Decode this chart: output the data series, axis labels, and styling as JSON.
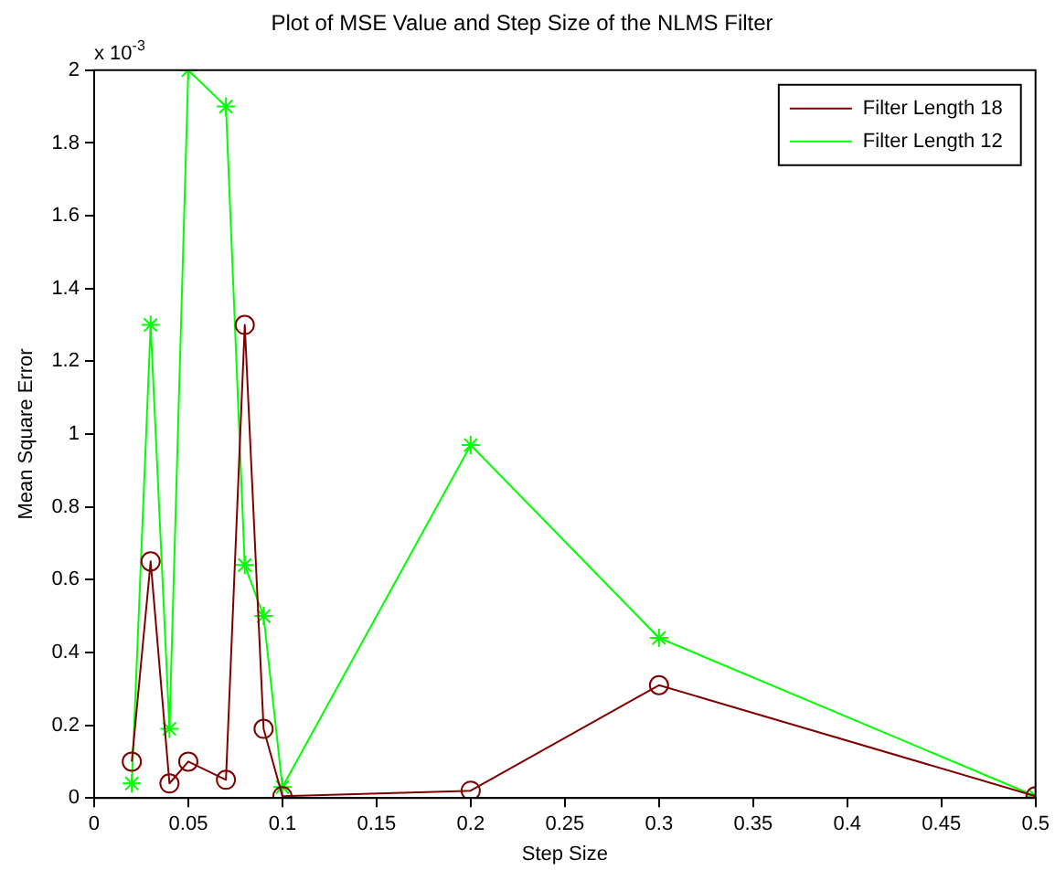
{
  "chart_data": {
    "type": "line",
    "title": "Plot of MSE Value and Step Size of the NLMS Filter",
    "xlabel": "Step Size",
    "ylabel": "Mean Square Error",
    "annotations": [
      "x 10$^{-3}$"
    ],
    "x": [
      0.02,
      0.03,
      0.04,
      0.05,
      0.07,
      0.08,
      0.09,
      0.1,
      0.2,
      0.3,
      0.5
    ],
    "series": [
      {
        "name": "Filter Length 18",
        "color": "#800000",
        "marker": "circle",
        "values": [
          0.1,
          0.65,
          0.04,
          0.1,
          0.05,
          1.3,
          0.19,
          0.005,
          0.02,
          0.31,
          0.005
        ]
      },
      {
        "name": "Filter Length 12",
        "color": "#00ff00",
        "marker": "cross",
        "values": [
          0.04,
          1.3,
          0.19,
          2.0,
          1.9,
          0.64,
          0.5,
          0.03,
          0.97,
          0.44,
          0.005
        ]
      }
    ],
    "xlim": [
      0,
      0.5
    ],
    "xticks": [
      0,
      0.05,
      0.1,
      0.15,
      0.2,
      0.25,
      0.3,
      0.35,
      0.4,
      0.45,
      0.5
    ],
    "ylim": [
      0,
      2
    ],
    "yticks": [
      0,
      0.2,
      0.4,
      0.6,
      0.8,
      1,
      1.2,
      1.4,
      1.6,
      1.8,
      2
    ],
    "grid": false,
    "legend": "top right",
    "line_style": "solid"
  }
}
